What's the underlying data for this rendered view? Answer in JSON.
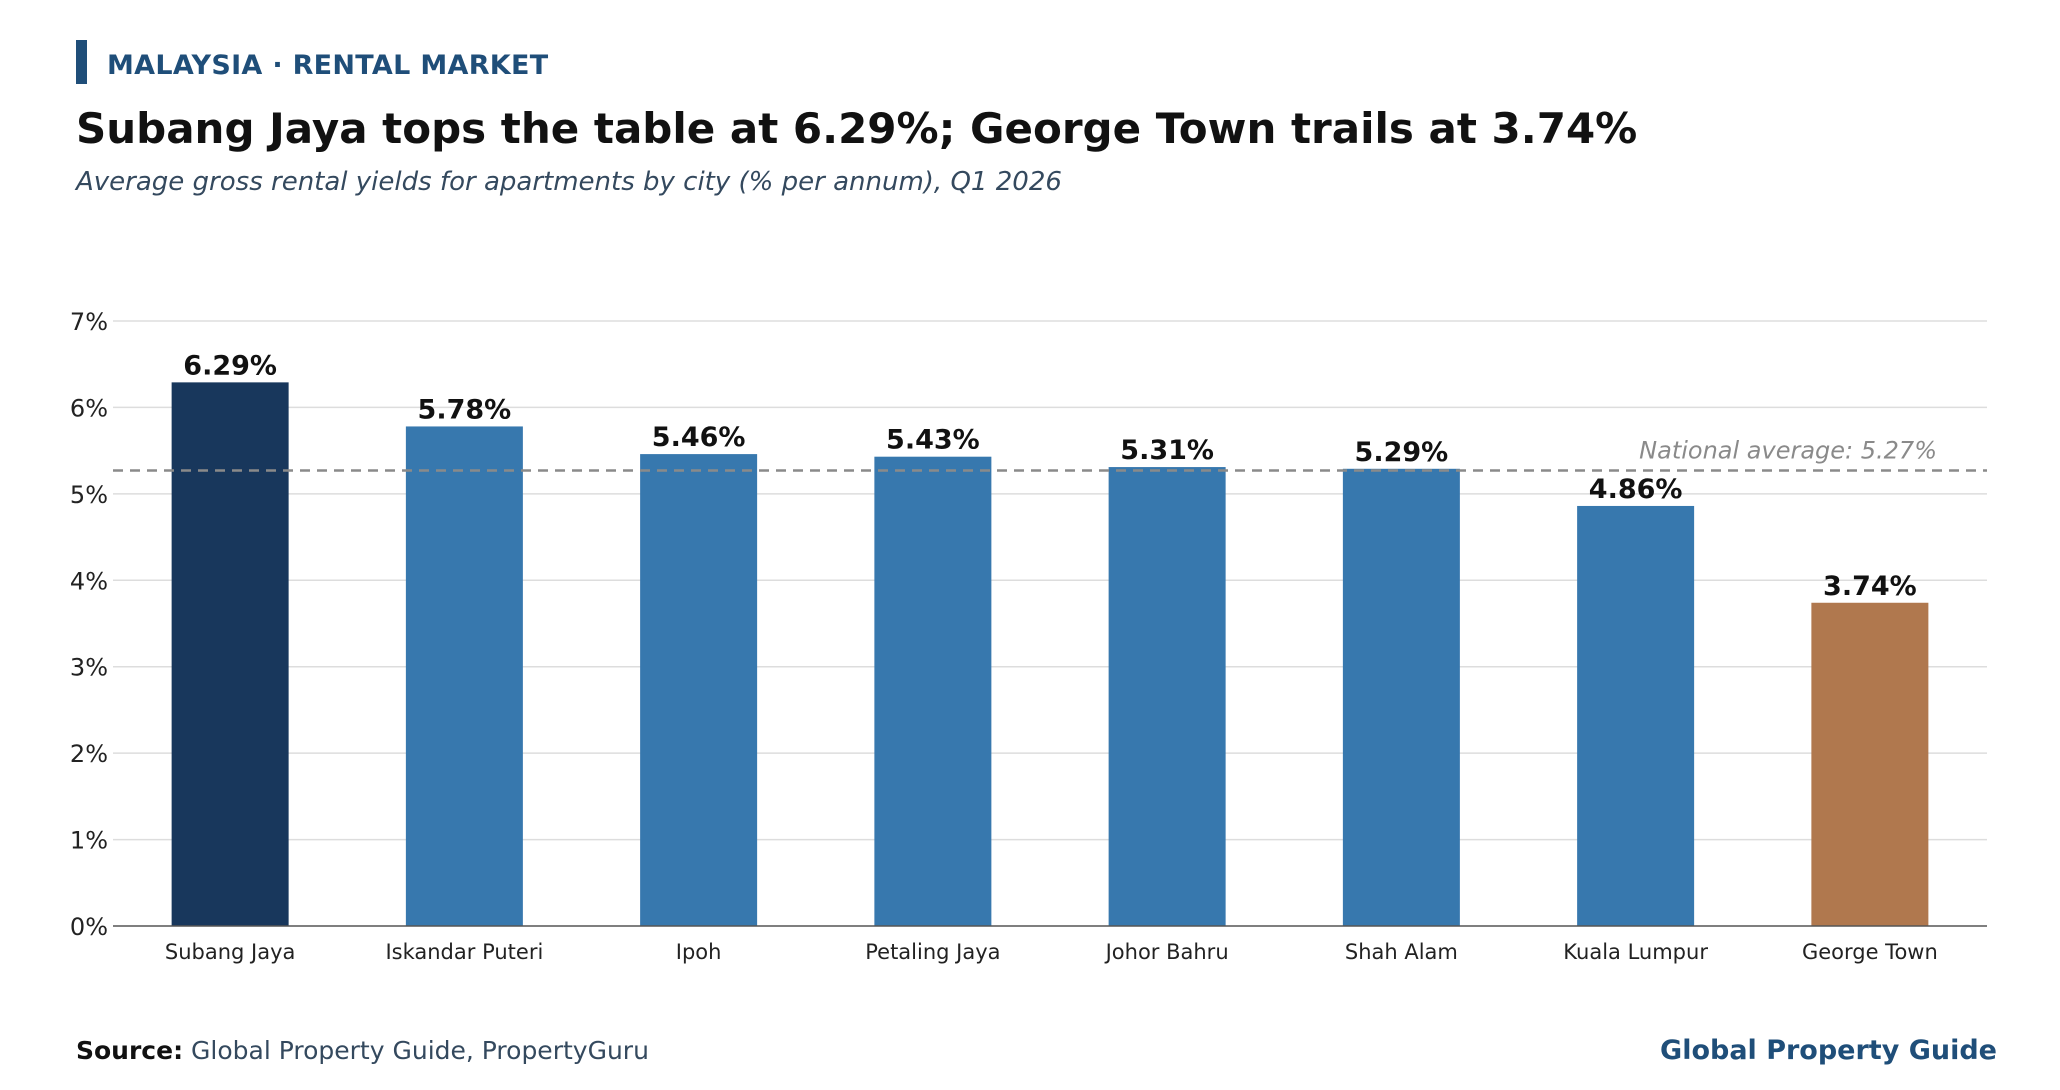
{
  "header": {
    "kicker": "MALAYSIA · RENTAL MARKET",
    "title": "Subang Jaya tops the table at 6.29%; George Town trails at 3.74%",
    "subtitle": "Average gross rental yields for apartments by city (% per annum), Q1 2026"
  },
  "footer": {
    "source_label": "Source:",
    "source_text": "Global Property Guide, PropertyGuru",
    "brand": "Global Property Guide"
  },
  "colors": {
    "highlight_top": "#18375c",
    "default_bar": "#3778ae",
    "highlight_bottom": "#b0784e",
    "reference_line": "#8a8a8a",
    "grid": "#dddddd",
    "axis": "#555555"
  },
  "chart_data": {
    "type": "bar",
    "categories": [
      "Subang Jaya",
      "Iskandar Puteri",
      "Ipoh",
      "Petaling Jaya",
      "Johor Bahru",
      "Shah Alam",
      "Kuala Lumpur",
      "George Town"
    ],
    "values": [
      6.29,
      5.78,
      5.46,
      5.43,
      5.31,
      5.29,
      4.86,
      3.74
    ],
    "data_labels": [
      "6.29%",
      "5.78%",
      "5.46%",
      "5.43%",
      "5.31%",
      "5.29%",
      "4.86%",
      "3.74%"
    ],
    "bar_colors": [
      "#18375c",
      "#3778ae",
      "#3778ae",
      "#3778ae",
      "#3778ae",
      "#3778ae",
      "#3778ae",
      "#b0784e"
    ],
    "ylim": [
      0,
      7
    ],
    "yticks": [
      0,
      1,
      2,
      3,
      4,
      5,
      6,
      7
    ],
    "ytick_labels": [
      "0%",
      "1%",
      "2%",
      "3%",
      "4%",
      "5%",
      "6%",
      "7%"
    ],
    "xlabel": "",
    "ylabel": "",
    "grid": true,
    "reference_line": {
      "value": 5.27,
      "label": "National average: 5.27%",
      "style": "dashed"
    }
  }
}
